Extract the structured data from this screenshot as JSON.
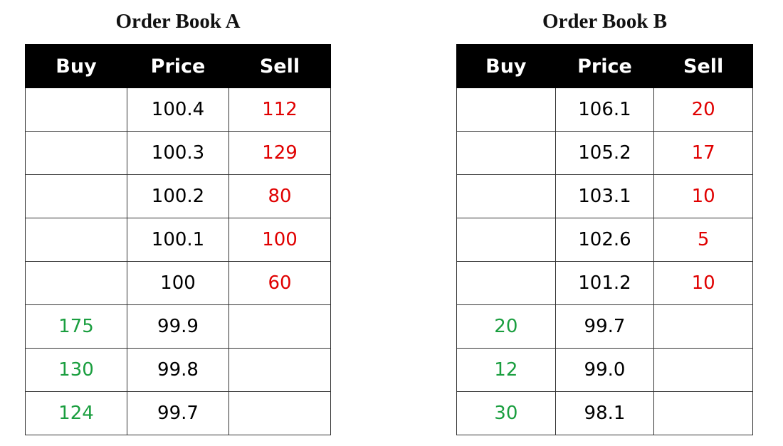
{
  "books": [
    {
      "title": "Order Book A",
      "headers": [
        "Buy",
        "Price",
        "Sell"
      ],
      "rows": [
        {
          "buy": "",
          "price": "100.4",
          "sell": "112"
        },
        {
          "buy": "",
          "price": "100.3",
          "sell": "129"
        },
        {
          "buy": "",
          "price": "100.2",
          "sell": "80"
        },
        {
          "buy": "",
          "price": "100.1",
          "sell": "100"
        },
        {
          "buy": "",
          "price": "100",
          "sell": "60"
        },
        {
          "buy": "175",
          "price": "99.9",
          "sell": ""
        },
        {
          "buy": "130",
          "price": "99.8",
          "sell": ""
        },
        {
          "buy": "124",
          "price": "99.7",
          "sell": ""
        }
      ]
    },
    {
      "title": "Order Book B",
      "headers": [
        "Buy",
        "Price",
        "Sell"
      ],
      "rows": [
        {
          "buy": "",
          "price": "106.1",
          "sell": "20"
        },
        {
          "buy": "",
          "price": "105.2",
          "sell": "17"
        },
        {
          "buy": "",
          "price": "103.1",
          "sell": "10"
        },
        {
          "buy": "",
          "price": "102.6",
          "sell": "5"
        },
        {
          "buy": "",
          "price": "101.2",
          "sell": "10"
        },
        {
          "buy": "20",
          "price": "99.7",
          "sell": ""
        },
        {
          "buy": "12",
          "price": "99.0",
          "sell": ""
        },
        {
          "buy": "30",
          "price": "98.1",
          "sell": ""
        }
      ]
    }
  ],
  "colors": {
    "buy": "#1a9e3f",
    "sell": "#e00000",
    "header_bg": "#000000"
  }
}
